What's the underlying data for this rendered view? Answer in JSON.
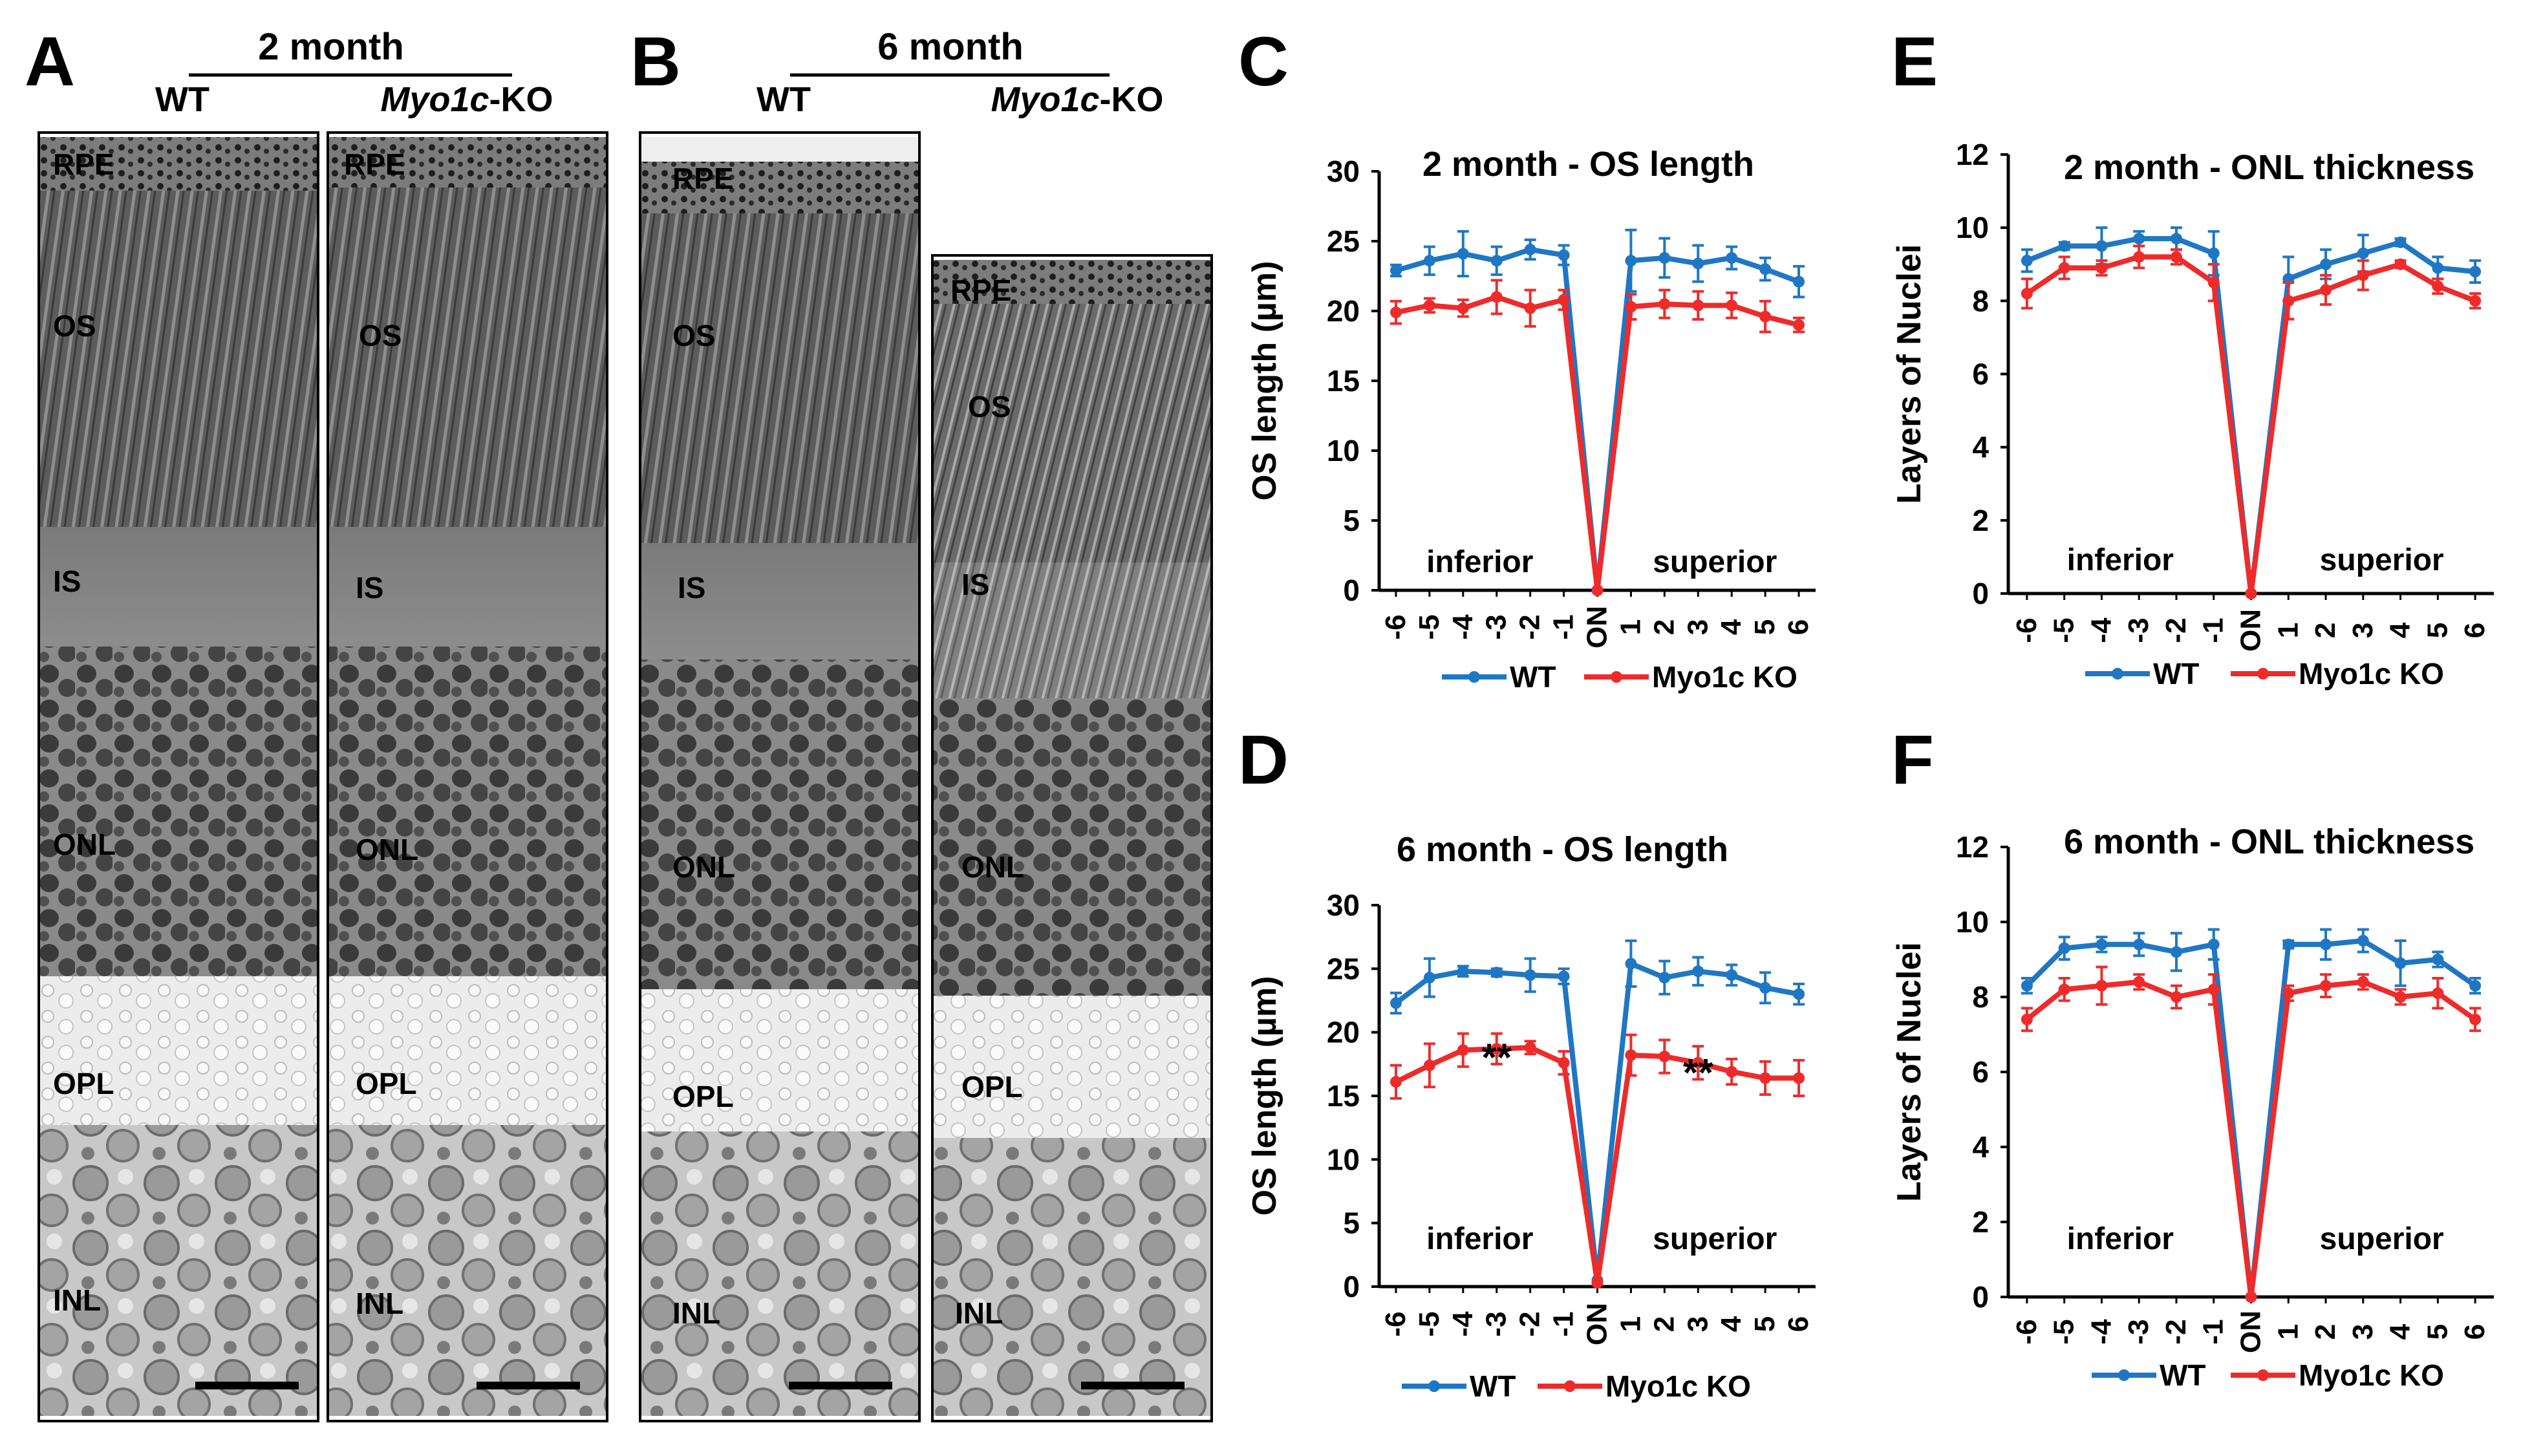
{
  "panels": {
    "A": {
      "letter": "A",
      "title": "2 month",
      "left_label": "WT",
      "right_label_italic": "Myo1c",
      "right_label_suffix": "-KO"
    },
    "B": {
      "letter": "B",
      "title": "6 month",
      "left_label": "WT",
      "right_label_italic": "Myo1c",
      "right_label_suffix": "-KO"
    }
  },
  "layer_labels": [
    "RPE",
    "OS",
    "IS",
    "ONL",
    "OPL",
    "INL"
  ],
  "legend": {
    "wt": "WT",
    "ko": "Myo1c KO"
  },
  "colors": {
    "wt": "#1f77c4",
    "ko": "#ee2b2b"
  },
  "chart_data": [
    {
      "id": "C",
      "letter": "C",
      "type": "line",
      "title": "2 month - OS length",
      "ylabel": "OS length (µm)",
      "ylim": [
        0,
        30
      ],
      "yticks": [
        "0",
        "5",
        "10",
        "15",
        "20",
        "25",
        "30"
      ],
      "categories": [
        "-6",
        "-5",
        "-4",
        "-3",
        "-2",
        "-1",
        "ON",
        "1",
        "2",
        "3",
        "4",
        "5",
        "6"
      ],
      "region_labels": [
        "inferior",
        "superior"
      ],
      "annotations": [],
      "series": [
        {
          "name": "WT",
          "values": [
            22.9,
            23.6,
            24.1,
            23.6,
            24.4,
            24.0,
            0,
            23.6,
            23.8,
            23.4,
            23.8,
            23.0,
            22.1
          ],
          "errors": [
            0.4,
            1.0,
            1.6,
            1.0,
            0.7,
            0.7,
            0,
            2.2,
            1.4,
            1.3,
            0.8,
            0.8,
            1.1
          ]
        },
        {
          "name": "Myo1c KO",
          "values": [
            19.9,
            20.4,
            20.2,
            21.0,
            20.2,
            20.8,
            0,
            20.3,
            20.5,
            20.4,
            20.4,
            19.6,
            19.0
          ],
          "errors": [
            0.8,
            0.5,
            0.6,
            1.2,
            1.3,
            0.7,
            0,
            0.9,
            1.0,
            1.0,
            0.9,
            1.1,
            0.5
          ]
        }
      ]
    },
    {
      "id": "E",
      "letter": "E",
      "type": "line",
      "title": "2 month - ONL thickness",
      "ylabel": "Layers of Nuclei",
      "ylim": [
        0,
        12
      ],
      "yticks": [
        "0",
        "2",
        "4",
        "6",
        "8",
        "10",
        "12"
      ],
      "categories": [
        "-6",
        "-5",
        "-4",
        "-3",
        "-2",
        "-1",
        "ON",
        "1",
        "2",
        "3",
        "4",
        "5",
        "6"
      ],
      "region_labels": [
        "inferior",
        "superior"
      ],
      "annotations": [],
      "series": [
        {
          "name": "WT",
          "values": [
            9.1,
            9.5,
            9.5,
            9.7,
            9.7,
            9.3,
            0,
            8.6,
            9.0,
            9.3,
            9.6,
            8.9,
            8.8
          ],
          "errors": [
            0.3,
            0.1,
            0.5,
            0.2,
            0.3,
            0.6,
            0,
            0.6,
            0.4,
            0.5,
            0.1,
            0.3,
            0.3
          ]
        },
        {
          "name": "Myo1c KO",
          "values": [
            8.2,
            8.9,
            8.9,
            9.2,
            9.2,
            8.5,
            0,
            8.0,
            8.3,
            8.7,
            9.0,
            8.4,
            8.0
          ],
          "errors": [
            0.4,
            0.3,
            0.2,
            0.3,
            0.2,
            0.5,
            0,
            0.5,
            0.4,
            0.4,
            0.1,
            0.2,
            0.2
          ]
        }
      ]
    },
    {
      "id": "D",
      "letter": "D",
      "type": "line",
      "title": "6 month - OS length",
      "ylabel": "OS length (µm)",
      "ylim": [
        0,
        30
      ],
      "yticks": [
        "0",
        "5",
        "10",
        "15",
        "20",
        "25",
        "30"
      ],
      "categories": [
        "-6",
        "-5",
        "-4",
        "-3",
        "-2",
        "-1",
        "ON",
        "1",
        "2",
        "3",
        "4",
        "5",
        "6"
      ],
      "region_labels": [
        "inferior",
        "superior"
      ],
      "annotations": [
        {
          "text": "**",
          "category": "-3"
        },
        {
          "text": "**",
          "category": "3"
        }
      ],
      "series": [
        {
          "name": "WT",
          "values": [
            22.3,
            24.3,
            24.8,
            24.7,
            24.5,
            24.4,
            0.5,
            25.4,
            24.3,
            24.8,
            24.5,
            23.5,
            23.0
          ],
          "errors": [
            0.8,
            1.5,
            0.4,
            0.3,
            1.3,
            0.6,
            0,
            1.8,
            1.3,
            1.1,
            0.8,
            1.2,
            0.8
          ]
        },
        {
          "name": "Myo1c KO",
          "values": [
            16.1,
            17.4,
            18.6,
            18.7,
            18.8,
            17.6,
            0.3,
            18.2,
            18.1,
            17.6,
            16.9,
            16.4,
            16.4
          ],
          "errors": [
            1.3,
            1.7,
            1.3,
            1.2,
            0.5,
            0.9,
            0,
            1.6,
            1.3,
            1.3,
            1.0,
            1.3,
            1.4
          ]
        }
      ]
    },
    {
      "id": "F",
      "letter": "F",
      "type": "line",
      "title": "6 month - ONL thickness",
      "ylabel": "Layers of Nuclei",
      "ylim": [
        0,
        12
      ],
      "yticks": [
        "0",
        "2",
        "4",
        "6",
        "8",
        "10",
        "12"
      ],
      "categories": [
        "-6",
        "-5",
        "-4",
        "-3",
        "-2",
        "-1",
        "ON",
        "1",
        "2",
        "3",
        "4",
        "5",
        "6"
      ],
      "region_labels": [
        "inferior",
        "superior"
      ],
      "annotations": [],
      "series": [
        {
          "name": "WT",
          "values": [
            8.3,
            9.3,
            9.4,
            9.4,
            9.2,
            9.4,
            0,
            9.4,
            9.4,
            9.5,
            8.9,
            9.0,
            8.3
          ],
          "errors": [
            0.2,
            0.3,
            0.2,
            0.3,
            0.5,
            0.4,
            0,
            0.1,
            0.4,
            0.3,
            0.6,
            0.2,
            0.2
          ]
        },
        {
          "name": "Myo1c KO",
          "values": [
            7.4,
            8.2,
            8.3,
            8.4,
            8.0,
            8.2,
            0,
            8.1,
            8.3,
            8.4,
            8.0,
            8.1,
            7.4
          ],
          "errors": [
            0.3,
            0.3,
            0.5,
            0.2,
            0.3,
            0.4,
            0,
            0.2,
            0.3,
            0.2,
            0.2,
            0.4,
            0.3
          ]
        }
      ]
    }
  ]
}
